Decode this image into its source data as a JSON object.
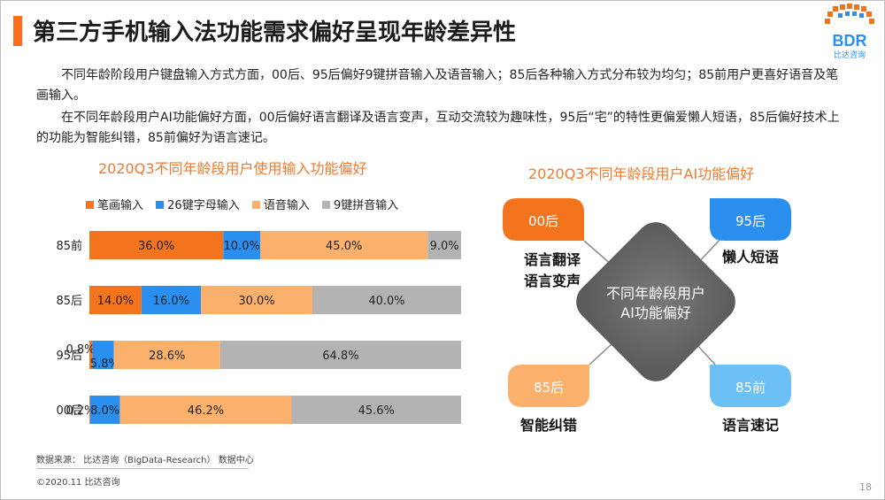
{
  "slide": {
    "title": "第三方手机输入法功能需求偏好呈现年龄差异性",
    "logo_text": "BDR",
    "logo_sub": "比达咨询",
    "paragraphs": [
      "不同年龄阶段用户键盘输入方式方面，00后、95后偏好9键拼音输入及语音输入；85后各种输入方式分布较为均匀；85前用户更喜好语音及笔画输入。",
      "在不同年龄段用户AI功能偏好方面，00后偏好语言翻译及语言变声，互动交流较为趣味性，95后“宅”的特性更偏爱懒人短语，85后偏好技术上的功能为智能纠错，85前偏好为语言速记。"
    ],
    "source": "数据来源： 比达咨询（BigData-Research） 数据中心",
    "copyright": "©2020.11  比达咨询",
    "page_number": "18"
  },
  "chart_data": {
    "type": "bar",
    "orientation": "horizontal-stacked-100",
    "title": "2020Q3不同年龄段用户使用输入功能偏好",
    "categories": [
      "85前",
      "85后",
      "95后",
      "00后"
    ],
    "legend_position": "top",
    "series": [
      {
        "name": "笔画输入",
        "color": "#f4741e",
        "values": [
          36.0,
          14.0,
          0.8,
          0.2
        ],
        "labels": [
          "36.0%",
          "14.0%",
          "0.8%",
          "0.2%"
        ]
      },
      {
        "name": "26键字母输入",
        "color": "#2b8ff0",
        "values": [
          10.0,
          16.0,
          5.8,
          8.0
        ],
        "labels": [
          "10.0%",
          "16.0%",
          "5.8%",
          "8.0%"
        ]
      },
      {
        "name": "语音输入",
        "color": "#fbb06c",
        "values": [
          45.0,
          30.0,
          28.6,
          46.2
        ],
        "labels": [
          "45.0%",
          "30.0%",
          "28.6%",
          "46.2%"
        ]
      },
      {
        "name": "9键拼音输入",
        "color": "#b3b3b3",
        "values": [
          9.0,
          40.0,
          64.8,
          45.6
        ],
        "labels": [
          "9.0%",
          "40.0%",
          "64.8%",
          "45.6%"
        ]
      }
    ]
  },
  "diagram": {
    "title": "2020Q3不同年龄段用户AI功能偏好",
    "center_lines": [
      "不同年龄段用户",
      "AI功能偏好"
    ],
    "center_color": "#5b5b5b",
    "nodes": [
      {
        "label": "00后",
        "color": "#f4741e",
        "desc": [
          "语言翻译",
          "语言变声"
        ]
      },
      {
        "label": "95后",
        "color": "#2b8ff0",
        "desc": [
          "懒人短语"
        ]
      },
      {
        "label": "85后",
        "color": "#fbb06c",
        "desc": [
          "智能纠错"
        ]
      },
      {
        "label": "85前",
        "color": "#6cc0f5",
        "desc": [
          "语言速记"
        ]
      }
    ]
  }
}
